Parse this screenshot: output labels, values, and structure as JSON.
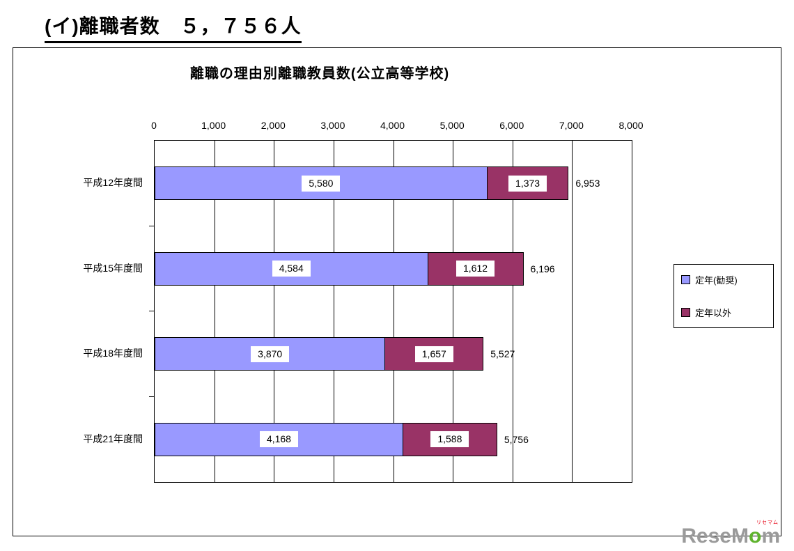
{
  "heading": "(イ)離職者数　５，７５６人",
  "chart_data": {
    "type": "bar",
    "orientation": "horizontal",
    "stacked": true,
    "title": "離職の理由別離職教員数(公立高等学校)",
    "categories": [
      "平成12年度間",
      "平成15年度間",
      "平成18年度間",
      "平成21年度間"
    ],
    "series": [
      {
        "name": "定年(勧奨)",
        "color": "#9999FF",
        "values": [
          5580,
          4584,
          3870,
          4168
        ],
        "labels": [
          "5,580",
          "4,584",
          "3,870",
          "4,168"
        ]
      },
      {
        "name": "定年以外",
        "color": "#993366",
        "values": [
          1373,
          1612,
          1657,
          1588
        ],
        "labels": [
          "1,373",
          "1,612",
          "1,657",
          "1,588"
        ]
      }
    ],
    "totals": [
      6953,
      6196,
      5527,
      5756
    ],
    "total_labels": [
      "6,953",
      "6,196",
      "5,527",
      "5,756"
    ],
    "xlim": [
      0,
      8000
    ],
    "x_tick_labels": [
      "0",
      "1,000",
      "2,000",
      "3,000",
      "4,000",
      "5,000",
      "6,000",
      "7,000",
      "8,000"
    ],
    "grid": "vertical",
    "legend_position": "right"
  },
  "logo": {
    "part_gray": "Rese",
    "part_m": "M",
    "part_o": "o",
    "part_m2": "m",
    "ruby": "リセマム",
    "gray_color": "#9a9a9a",
    "green_color": "#5fb32e",
    "ruby_color": "#e60012"
  }
}
